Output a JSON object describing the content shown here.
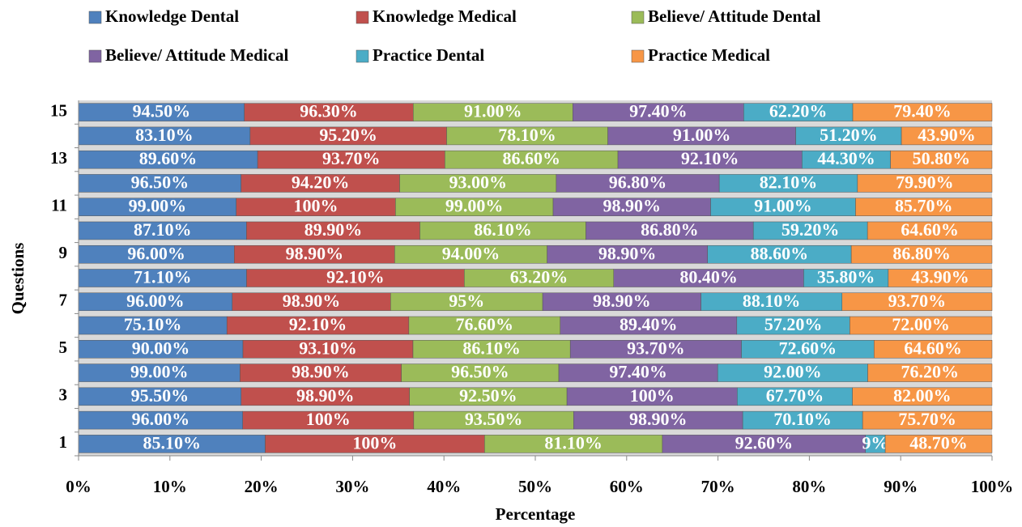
{
  "chart_data": {
    "type": "stacked_bar_horizontal_100",
    "x_label": "Percentage",
    "y_label": "Questions",
    "categories": [
      1,
      null,
      3,
      null,
      5,
      null,
      7,
      null,
      9,
      null,
      11,
      null,
      13,
      null,
      15
    ],
    "xlim": [
      0,
      100
    ],
    "xticks": [
      {
        "value": 0,
        "label": "0%"
      },
      {
        "value": 10,
        "label": "10%"
      },
      {
        "value": 20,
        "label": "20%"
      },
      {
        "value": 30,
        "label": "30%"
      },
      {
        "value": 40,
        "label": "40%"
      },
      {
        "value": 50,
        "label": "50%"
      },
      {
        "value": 60,
        "label": "60%"
      },
      {
        "value": 70,
        "label": "70%"
      },
      {
        "value": 80,
        "label": "80%"
      },
      {
        "value": 90,
        "label": "90%"
      },
      {
        "value": 100,
        "label": "100%"
      }
    ],
    "legend": "top",
    "series": [
      {
        "name": "Knowledge Dental",
        "color": "#4f81bd",
        "values": [
          85.1,
          96.0,
          95.5,
          99.0,
          90.0,
          75.1,
          96.0,
          71.1,
          96.0,
          87.1,
          99.0,
          96.5,
          89.6,
          83.1,
          94.5
        ],
        "value_labels": [
          "85.10%",
          "96.00%",
          "95.50%",
          "99.00%",
          "90.00%",
          "75.10%",
          "96.00%",
          "71.10%",
          "96.00%",
          "87.10%",
          "99.00%",
          "96.50%",
          "89.60%",
          "83.10%",
          "94.50%"
        ]
      },
      {
        "name": "Knowledge Medical",
        "color": "#c0504d",
        "values": [
          100,
          100,
          98.9,
          98.9,
          93.1,
          92.1,
          98.9,
          92.1,
          98.9,
          89.9,
          100,
          94.2,
          93.7,
          95.2,
          96.3
        ],
        "value_labels": [
          "100%",
          "100%",
          "98.90%",
          "98.90%",
          "93.10%",
          "92.10%",
          "98.90%",
          "92.10%",
          "98.90%",
          "89.90%",
          "100%",
          "94.20%",
          "93.70%",
          "95.20%",
          "96.30%"
        ]
      },
      {
        "name": "Believe/ Attitude Dental",
        "color": "#9bbb59",
        "values": [
          81.1,
          93.5,
          92.5,
          96.5,
          86.1,
          76.6,
          95,
          63.2,
          94.0,
          86.1,
          99.0,
          93.0,
          86.6,
          78.1,
          91.0
        ],
        "value_labels": [
          "81.10%",
          "93.50%",
          "92.50%",
          "96.50%",
          "86.10%",
          "76.60%",
          "95%",
          "63.20%",
          "94.00%",
          "86.10%",
          "99.00%",
          "93.00%",
          "86.60%",
          "78.10%",
          "91.00%"
        ]
      },
      {
        "name": "Believe/ Attitude Medical",
        "color": "#8064a2",
        "values": [
          92.6,
          98.9,
          100,
          97.4,
          93.7,
          89.4,
          98.9,
          80.4,
          98.9,
          86.8,
          98.9,
          96.8,
          92.1,
          91.0,
          97.4
        ],
        "value_labels": [
          "92.60%",
          "98.90%",
          "100%",
          "97.40%",
          "93.70%",
          "89.40%",
          "98.90%",
          "80.40%",
          "98.90%",
          "86.80%",
          "98.90%",
          "96.80%",
          "92.10%",
          "91.00%",
          "97.40%"
        ]
      },
      {
        "name": "Practice Dental",
        "color": "#4bacc6",
        "values": [
          9,
          70.1,
          67.7,
          92.0,
          72.6,
          57.2,
          88.1,
          35.8,
          88.6,
          59.2,
          91.0,
          82.1,
          44.3,
          51.2,
          62.2
        ],
        "value_labels": [
          "9%",
          "70.10%",
          "67.70%",
          "92.00%",
          "72.60%",
          "57.20%",
          "88.10%",
          "35.80%",
          "88.60%",
          "59.20%",
          "91.00%",
          "82.10%",
          "44.30%",
          "51.20%",
          "62.20%"
        ]
      },
      {
        "name": "Practice Medical",
        "color": "#f79646",
        "values": [
          48.7,
          75.7,
          82.0,
          76.2,
          64.6,
          72.0,
          93.7,
          43.9,
          86.8,
          64.6,
          85.7,
          79.9,
          50.8,
          43.9,
          79.4
        ],
        "value_labels": [
          "48.70%",
          "75.70%",
          "82.00%",
          "76.20%",
          "64.60%",
          "72.00%",
          "93.70%",
          "43.90%",
          "86.80%",
          "64.60%",
          "85.70%",
          "79.90%",
          "50.80%",
          "43.90%",
          "79.40%"
        ]
      }
    ]
  }
}
